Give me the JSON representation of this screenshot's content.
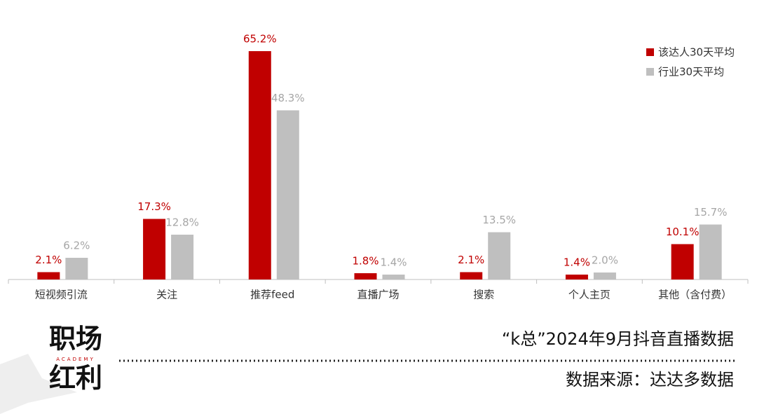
{
  "chart_data": {
    "type": "bar",
    "categories": [
      "短视频引流",
      "关注",
      "推荐feed",
      "直播广场",
      "搜索",
      "个人主页",
      "其他（含付费）"
    ],
    "series": [
      {
        "name": "该达人30天平均",
        "color": "#c00000",
        "values": [
          2.1,
          17.3,
          65.2,
          1.8,
          2.1,
          1.4,
          10.1
        ],
        "value_labels": [
          "2.1%",
          "17.3%",
          "65.2%",
          "1.8%",
          "2.1%",
          "1.4%",
          "10.1%"
        ],
        "label_color": "#c00000"
      },
      {
        "name": "行业30天平均",
        "color": "#bfbfbf",
        "values": [
          6.2,
          12.8,
          48.3,
          1.4,
          13.5,
          2.0,
          15.7
        ],
        "value_labels": [
          "6.2%",
          "12.8%",
          "48.3%",
          "1.4%",
          "13.5%",
          "2.0%",
          "15.7%"
        ],
        "label_color": "#a6a6a6"
      }
    ],
    "legend": "top-right"
  },
  "footer": {
    "logo_top": "职场",
    "logo_sub": "ACADEMY",
    "logo_bottom": "红利",
    "title": "“k总”2024年9月抖音直播数据",
    "source": "数据来源：达达多数据"
  }
}
